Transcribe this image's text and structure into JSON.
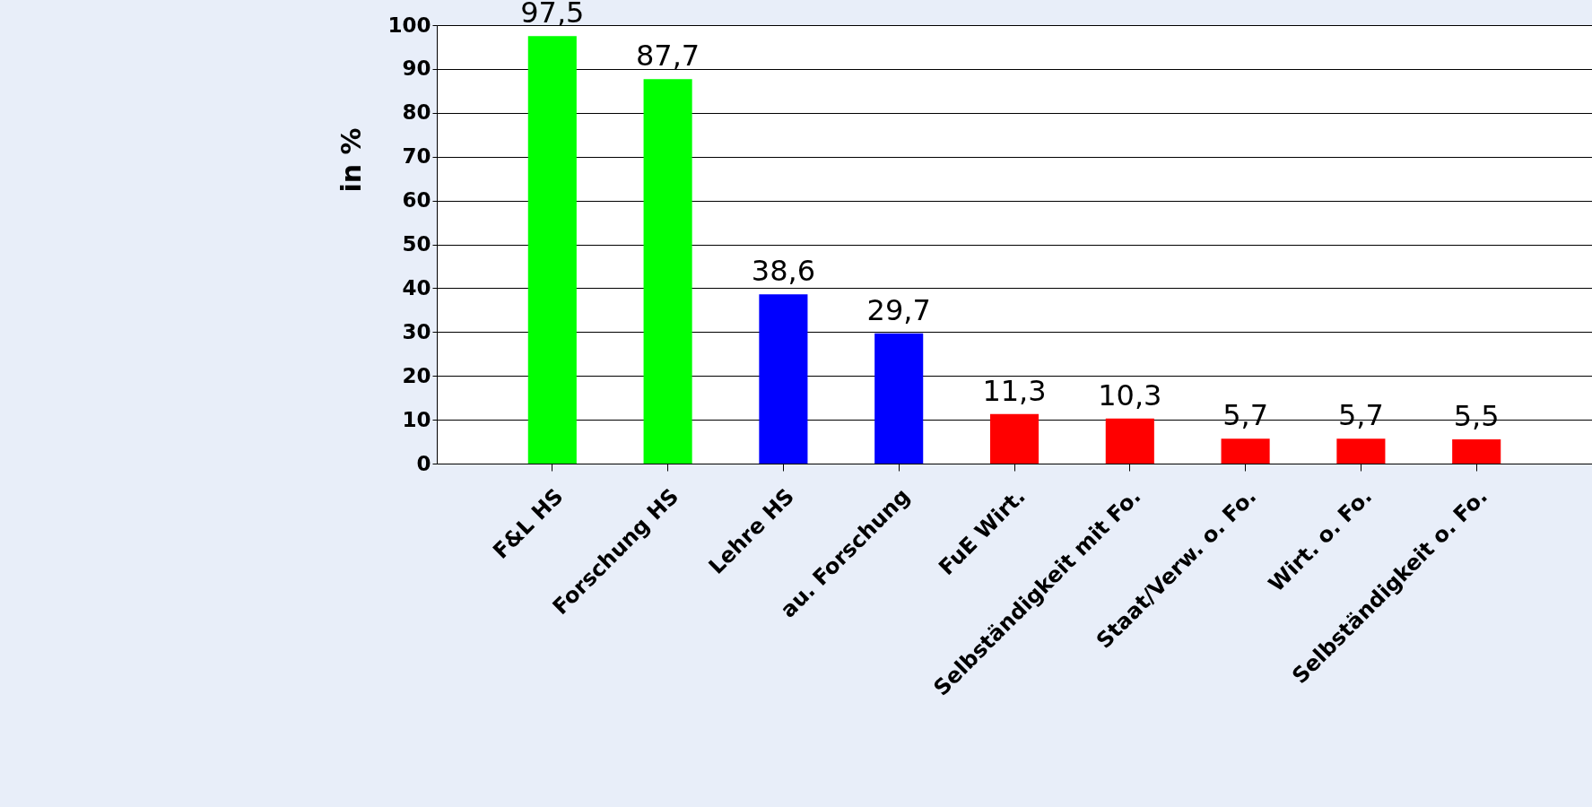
{
  "chart_data": {
    "type": "bar",
    "ylabel": "in %",
    "categories": [
      "F&L HS",
      "Forschung HS",
      "Lehre HS",
      "au. Forschung",
      "FuE Wirt.",
      "Selbständigkeit mit Fo.",
      "Staat/Verw. o. Fo.",
      "Wirt. o. Fo.",
      "Selbständigkeit o. Fo."
    ],
    "values": [
      97.5,
      87.7,
      38.6,
      29.7,
      11.3,
      10.3,
      5.7,
      5.7,
      5.5
    ],
    "colors": [
      "#00ff00",
      "#00ff00",
      "#0000ff",
      "#0000ff",
      "#ff0000",
      "#ff0000",
      "#ff0000",
      "#ff0000",
      "#ff0000"
    ],
    "value_labels": [
      "97,5",
      "87,7",
      "38,6",
      "29,7",
      "11,3",
      "10,3",
      "5,7",
      "5,7",
      "5,5"
    ],
    "ylim": [
      0,
      100
    ],
    "yticks": [
      0,
      10,
      20,
      30,
      40,
      50,
      60,
      70,
      80,
      90,
      100
    ],
    "grid": "y"
  }
}
